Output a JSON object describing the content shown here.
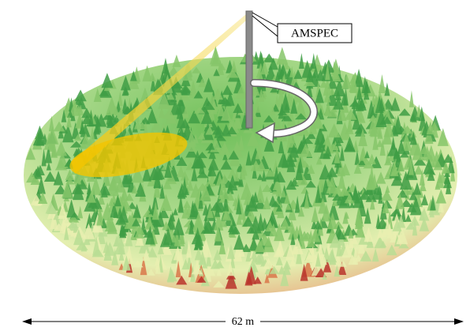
{
  "labels": {
    "instrument": "AMSPEC",
    "scale": "62 m"
  }
}
